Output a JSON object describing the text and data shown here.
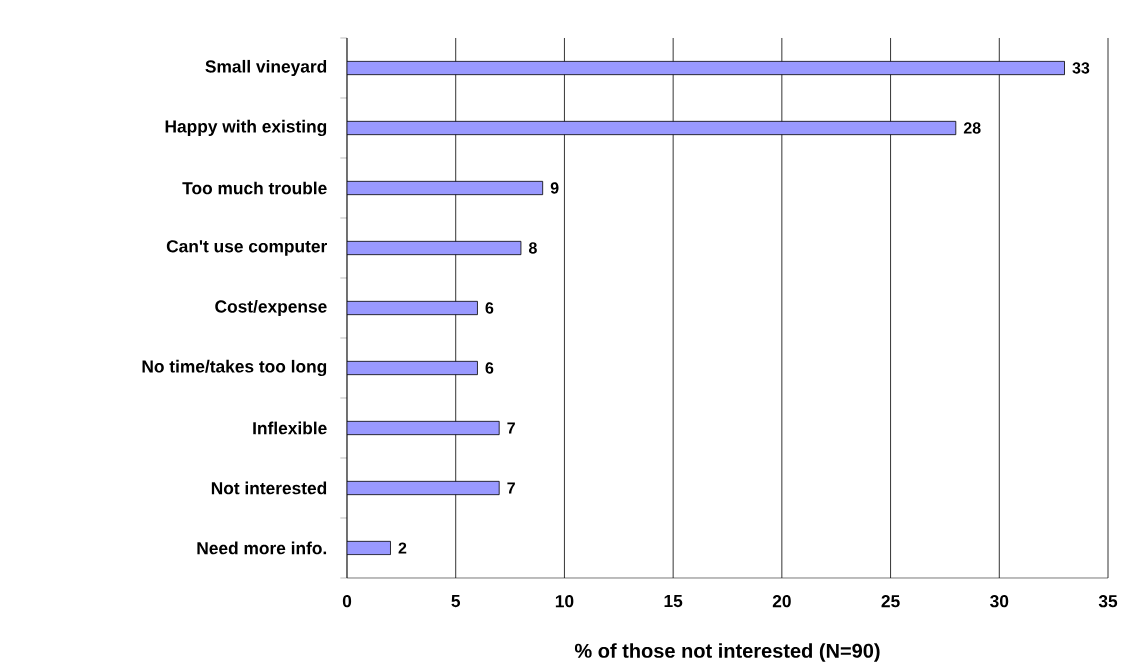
{
  "chart_data": {
    "type": "bar",
    "orientation": "horizontal",
    "categories": [
      "Small vineyard",
      "Happy with existing",
      "Too much trouble",
      "Can't use computer",
      "Cost/expense",
      "No time/takes too long",
      "Inflexible",
      "Not interested",
      "Need more info."
    ],
    "values": [
      33,
      28,
      9,
      8,
      6,
      6,
      7,
      7,
      2
    ],
    "color": "#9999ff",
    "xlabel": "% of those not interested (N=90)",
    "xlim": [
      0,
      35
    ],
    "xticks": [
      0,
      5,
      10,
      15,
      20,
      25,
      30,
      35
    ],
    "grid": "x",
    "data_labels": true
  }
}
